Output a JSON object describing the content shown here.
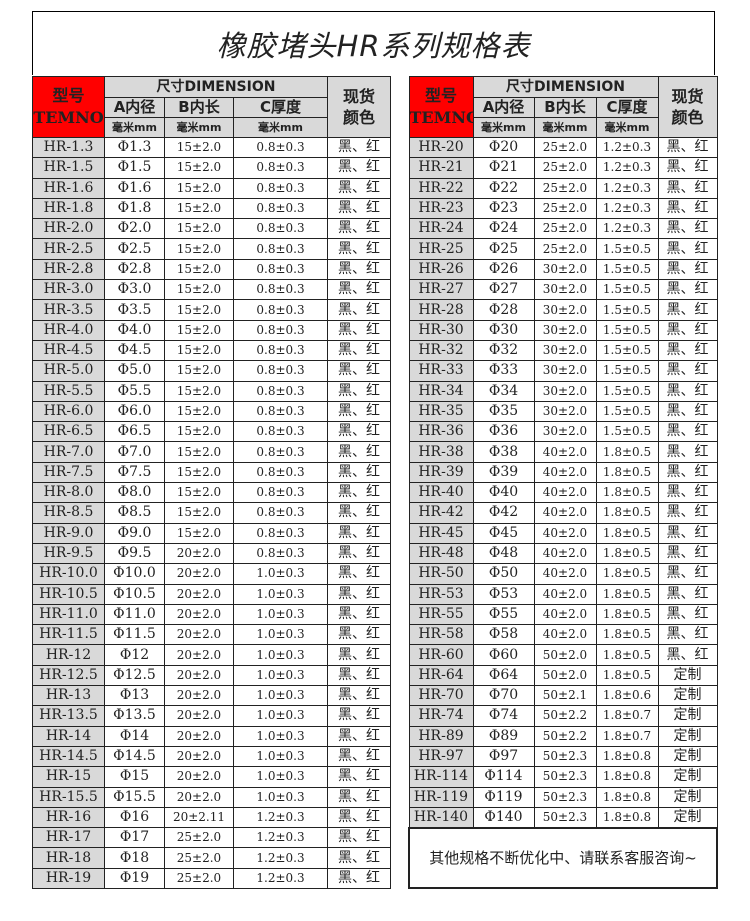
{
  "title": "橡胶堵头HR系列规格表",
  "header": {
    "model": "型号",
    "model_en": "TEMNO",
    "dimension": "尺寸DIMENSION",
    "a": "A内径",
    "b": "B内长",
    "c": "C厚度",
    "unit": "毫米mm",
    "color": "现货颜色"
  },
  "left_rows": [
    [
      "HR-1.3",
      "Φ1.3",
      "15±2.0",
      "0.8±0.3",
      "黑、红"
    ],
    [
      "HR-1.5",
      "Φ1.5",
      "15±2.0",
      "0.8±0.3",
      "黑、红"
    ],
    [
      "HR-1.6",
      "Φ1.6",
      "15±2.0",
      "0.8±0.3",
      "黑、红"
    ],
    [
      "HR-1.8",
      "Φ1.8",
      "15±2.0",
      "0.8±0.3",
      "黑、红"
    ],
    [
      "HR-2.0",
      "Φ2.0",
      "15±2.0",
      "0.8±0.3",
      "黑、红"
    ],
    [
      "HR-2.5",
      "Φ2.5",
      "15±2.0",
      "0.8±0.3",
      "黑、红"
    ],
    [
      "HR-2.8",
      "Φ2.8",
      "15±2.0",
      "0.8±0.3",
      "黑、红"
    ],
    [
      "HR-3.0",
      "Φ3.0",
      "15±2.0",
      "0.8±0.3",
      "黑、红"
    ],
    [
      "HR-3.5",
      "Φ3.5",
      "15±2.0",
      "0.8±0.3",
      "黑、红"
    ],
    [
      "HR-4.0",
      "Φ4.0",
      "15±2.0",
      "0.8±0.3",
      "黑、红"
    ],
    [
      "HR-4.5",
      "Φ4.5",
      "15±2.0",
      "0.8±0.3",
      "黑、红"
    ],
    [
      "HR-5.0",
      "Φ5.0",
      "15±2.0",
      "0.8±0.3",
      "黑、红"
    ],
    [
      "HR-5.5",
      "Φ5.5",
      "15±2.0",
      "0.8±0.3",
      "黑、红"
    ],
    [
      "HR-6.0",
      "Φ6.0",
      "15±2.0",
      "0.8±0.3",
      "黑、红"
    ],
    [
      "HR-6.5",
      "Φ6.5",
      "15±2.0",
      "0.8±0.3",
      "黑、红"
    ],
    [
      "HR-7.0",
      "Φ7.0",
      "15±2.0",
      "0.8±0.3",
      "黑、红"
    ],
    [
      "HR-7.5",
      "Φ7.5",
      "15±2.0",
      "0.8±0.3",
      "黑、红"
    ],
    [
      "HR-8.0",
      "Φ8.0",
      "15±2.0",
      "0.8±0.3",
      "黑、红"
    ],
    [
      "HR-8.5",
      "Φ8.5",
      "15±2.0",
      "0.8±0.3",
      "黑、红"
    ],
    [
      "HR-9.0",
      "Φ9.0",
      "15±2.0",
      "0.8±0.3",
      "黑、红"
    ],
    [
      "HR-9.5",
      "Φ9.5",
      "20±2.0",
      "0.8±0.3",
      "黑、红"
    ],
    [
      "HR-10.0",
      "Φ10.0",
      "20±2.0",
      "1.0±0.3",
      "黑、红"
    ],
    [
      "HR-10.5",
      "Φ10.5",
      "20±2.0",
      "1.0±0.3",
      "黑、红"
    ],
    [
      "HR-11.0",
      "Φ11.0",
      "20±2.0",
      "1.0±0.3",
      "黑、红"
    ],
    [
      "HR-11.5",
      "Φ11.5",
      "20±2.0",
      "1.0±0.3",
      "黑、红"
    ],
    [
      "HR-12",
      "Φ12",
      "20±2.0",
      "1.0±0.3",
      "黑、红"
    ],
    [
      "HR-12.5",
      "Φ12.5",
      "20±2.0",
      "1.0±0.3",
      "黑、红"
    ],
    [
      "HR-13",
      "Φ13",
      "20±2.0",
      "1.0±0.3",
      "黑、红"
    ],
    [
      "HR-13.5",
      "Φ13.5",
      "20±2.0",
      "1.0±0.3",
      "黑、红"
    ],
    [
      "HR-14",
      "Φ14",
      "20±2.0",
      "1.0±0.3",
      "黑、红"
    ],
    [
      "HR-14.5",
      "Φ14.5",
      "20±2.0",
      "1.0±0.3",
      "黑、红"
    ],
    [
      "HR-15",
      "Φ15",
      "20±2.0",
      "1.0±0.3",
      "黑、红"
    ],
    [
      "HR-15.5",
      "Φ15.5",
      "20±2.0",
      "1.0±0.3",
      "黑、红"
    ],
    [
      "HR-16",
      "Φ16",
      "20±2.11",
      "1.2±0.3",
      "黑、红"
    ],
    [
      "HR-17",
      "Φ17",
      "25±2.0",
      "1.2±0.3",
      "黑、红"
    ],
    [
      "HR-18",
      "Φ18",
      "25±2.0",
      "1.2±0.3",
      "黑、红"
    ],
    [
      "HR-19",
      "Φ19",
      "25±2.0",
      "1.2±0.3",
      "黑、红"
    ]
  ],
  "right_rows": [
    [
      "HR-20",
      "Φ20",
      "25±2.0",
      "1.2±0.3",
      "黑、红"
    ],
    [
      "HR-21",
      "Φ21",
      "25±2.0",
      "1.2±0.3",
      "黑、红"
    ],
    [
      "HR-22",
      "Φ22",
      "25±2.0",
      "1.2±0.3",
      "黑、红"
    ],
    [
      "HR-23",
      "Φ23",
      "25±2.0",
      "1.2±0.3",
      "黑、红"
    ],
    [
      "HR-24",
      "Φ24",
      "25±2.0",
      "1.2±0.3",
      "黑、红"
    ],
    [
      "HR-25",
      "Φ25",
      "25±2.0",
      "1.5±0.5",
      "黑、红"
    ],
    [
      "HR-26",
      "Φ26",
      "30±2.0",
      "1.5±0.5",
      "黑、红"
    ],
    [
      "HR-27",
      "Φ27",
      "30±2.0",
      "1.5±0.5",
      "黑、红"
    ],
    [
      "HR-28",
      "Φ28",
      "30±2.0",
      "1.5±0.5",
      "黑、红"
    ],
    [
      "HR-30",
      "Φ30",
      "30±2.0",
      "1.5±0.5",
      "黑、红"
    ],
    [
      "HR-32",
      "Φ32",
      "30±2.0",
      "1.5±0.5",
      "黑、红"
    ],
    [
      "HR-33",
      "Φ33",
      "30±2.0",
      "1.5±0.5",
      "黑、红"
    ],
    [
      "HR-34",
      "Φ34",
      "30±2.0",
      "1.5±0.5",
      "黑、红"
    ],
    [
      "HR-35",
      "Φ35",
      "30±2.0",
      "1.5±0.5",
      "黑、红"
    ],
    [
      "HR-36",
      "Φ36",
      "30±2.0",
      "1.5±0.5",
      "黑、红"
    ],
    [
      "HR-38",
      "Φ38",
      "40±2.0",
      "1.8±0.5",
      "黑、红"
    ],
    [
      "HR-39",
      "Φ39",
      "40±2.0",
      "1.8±0.5",
      "黑、红"
    ],
    [
      "HR-40",
      "Φ40",
      "40±2.0",
      "1.8±0.5",
      "黑、红"
    ],
    [
      "HR-42",
      "Φ42",
      "40±2.0",
      "1.8±0.5",
      "黑、红"
    ],
    [
      "HR-45",
      "Φ45",
      "40±2.0",
      "1.8±0.5",
      "黑、红"
    ],
    [
      "HR-48",
      "Φ48",
      "40±2.0",
      "1.8±0.5",
      "黑、红"
    ],
    [
      "HR-50",
      "Φ50",
      "40±2.0",
      "1.8±0.5",
      "黑、红"
    ],
    [
      "HR-53",
      "Φ53",
      "40±2.0",
      "1.8±0.5",
      "黑、红"
    ],
    [
      "HR-55",
      "Φ55",
      "40±2.0",
      "1.8±0.5",
      "黑、红"
    ],
    [
      "HR-58",
      "Φ58",
      "40±2.0",
      "1.8±0.5",
      "黑、红"
    ],
    [
      "HR-60",
      "Φ60",
      "50±2.0",
      "1.8±0.5",
      "黑、红"
    ],
    [
      "HR-64",
      "Φ64",
      "50±2.0",
      "1.8±0.5",
      "定制"
    ],
    [
      "HR-70",
      "Φ70",
      "50±2.1",
      "1.8±0.6",
      "定制"
    ],
    [
      "HR-74",
      "Φ74",
      "50±2.2",
      "1.8±0.7",
      "定制"
    ],
    [
      "HR-89",
      "Φ89",
      "50±2.2",
      "1.8±0.7",
      "定制"
    ],
    [
      "HR-97",
      "Φ97",
      "50±2.3",
      "1.8±0.8",
      "定制"
    ],
    [
      "HR-114",
      "Φ114",
      "50±2.3",
      "1.8±0.8",
      "定制"
    ],
    [
      "HR-119",
      "Φ119",
      "50±2.3",
      "1.8±0.8",
      "定制"
    ],
    [
      "HR-140",
      "Φ140",
      "50±2.3",
      "1.8±0.8",
      "定制"
    ]
  ],
  "note": "其他规格不断优化中、请联系客服咨询~",
  "colors": {
    "header_red": "#ff0000",
    "header_gray": "#d9d9d9"
  }
}
